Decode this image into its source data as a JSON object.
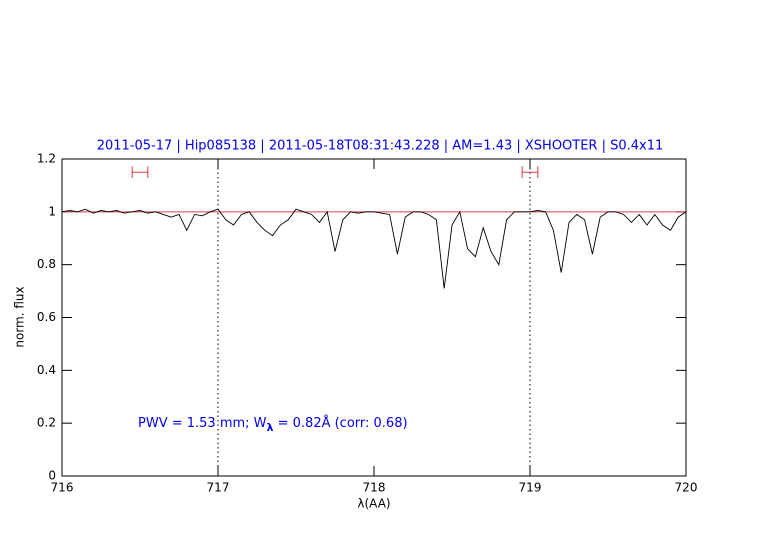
{
  "chart_data": {
    "type": "line",
    "title": "2011-05-17 | Hip085138 | 2011-05-18T08:31:43.228 | AM=1.43 | XSHOOTER | S0.4x11",
    "xlabel": "λ(AA)",
    "ylabel": "norm. flux",
    "annotation": [
      "PWV = 1.53 mm; W",
      "λ",
      " = 0.82Å  (corr: 0.68)"
    ],
    "x": [
      716.0,
      716.05,
      716.1,
      716.15,
      716.2,
      716.25,
      716.3,
      716.35,
      716.4,
      716.45,
      716.5,
      716.55,
      716.6,
      716.65,
      716.7,
      716.75,
      716.8,
      716.85,
      716.9,
      716.95,
      717.0,
      717.05,
      717.1,
      717.15,
      717.2,
      717.25,
      717.3,
      717.35,
      717.4,
      717.45,
      717.5,
      717.55,
      717.6,
      717.65,
      717.7,
      717.75,
      717.8,
      717.85,
      717.9,
      717.95,
      718.0,
      718.05,
      718.1,
      718.15,
      718.2,
      718.25,
      718.3,
      718.35,
      718.4,
      718.45,
      718.5,
      718.55,
      718.6,
      718.65,
      718.7,
      718.75,
      718.8,
      718.85,
      718.9,
      718.95,
      719.0,
      719.05,
      719.1,
      719.15,
      719.2,
      719.25,
      719.3,
      719.35,
      719.4,
      719.45,
      719.5,
      719.55,
      719.6,
      719.65,
      719.7,
      719.75,
      719.8,
      719.85,
      719.9,
      719.95,
      720.0
    ],
    "series": [
      {
        "color": "#000000",
        "values": [
          1.0,
          1.005,
          1.0,
          1.01,
          0.995,
          1.005,
          1.0,
          1.005,
          0.995,
          1.0,
          1.005,
          0.995,
          1.0,
          0.99,
          0.98,
          0.99,
          0.93,
          0.99,
          0.985,
          1.0,
          1.01,
          0.97,
          0.95,
          0.99,
          1.0,
          0.96,
          0.93,
          0.91,
          0.95,
          0.97,
          1.01,
          1.0,
          0.99,
          0.96,
          1.0,
          0.85,
          0.97,
          1.0,
          0.995,
          1.0,
          1.0,
          0.995,
          0.99,
          0.84,
          0.98,
          1.0,
          1.0,
          0.99,
          0.97,
          0.71,
          0.95,
          1.0,
          0.86,
          0.83,
          0.94,
          0.85,
          0.8,
          0.97,
          1.0,
          1.0,
          1.0,
          1.005,
          1.0,
          0.93,
          0.77,
          0.96,
          0.99,
          0.97,
          0.84,
          0.98,
          1.0,
          1.0,
          0.99,
          0.96,
          0.99,
          0.95,
          0.99,
          0.95,
          0.93,
          0.98,
          1.0
        ]
      }
    ],
    "reference_line": {
      "value": 1,
      "color": "#e04040"
    },
    "vlines": [
      717,
      719
    ],
    "windows": {
      "color": "#e04040",
      "y": 1.15,
      "ranges": [
        [
          716.45,
          716.55
        ],
        [
          718.95,
          719.05
        ]
      ]
    },
    "xlim": [
      716,
      720
    ],
    "ylim": [
      0,
      1.2
    ],
    "xticks": [
      716,
      717,
      718,
      719,
      720
    ],
    "yticks": [
      0,
      0.2,
      0.4,
      0.6,
      0.8,
      1,
      1.2
    ],
    "title_color": "#0000ee"
  }
}
